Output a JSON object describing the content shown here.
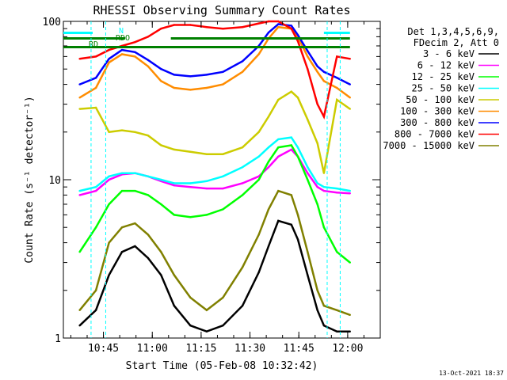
{
  "chart_data": {
    "type": "line",
    "title": "RHESSI Observing Summary Count Rates",
    "xlabel": "Start Time (05-Feb-08 10:32:42)",
    "ylabel": "Count Rate (s⁻¹ detector⁻¹)",
    "y_scale": "log",
    "ylim": [
      1,
      100
    ],
    "xlim": [
      "10:32:42",
      "12:10:00"
    ],
    "x_unit": "minutes after 10:32:42",
    "x_ticks": [
      "10:45",
      "11:00",
      "11:15",
      "11:30",
      "11:45",
      "12:00"
    ],
    "y_ticks": [
      "1",
      "10",
      "100"
    ],
    "legend_title": [
      "Det 1,3,4,5,6,9,",
      "FDecim 2, Att 0"
    ],
    "legend_position": "right",
    "footer_date": "13-Oct-2021 18:37",
    "flags": [
      {
        "label": "N",
        "color": "#00ffff"
      },
      {
        "label": "RDO",
        "color": "#008000"
      },
      {
        "label": "RD",
        "color": "#008000"
      }
    ],
    "series": [
      {
        "name": "3 - 6 keV",
        "color": "#000000",
        "x": [
          5,
          10,
          14,
          18,
          22,
          26,
          30,
          34,
          39,
          44,
          49,
          55,
          60,
          63,
          66,
          70,
          72,
          75,
          78,
          80,
          84,
          88
        ],
        "y": [
          1.2,
          1.5,
          2.5,
          3.5,
          3.8,
          3.2,
          2.5,
          1.6,
          1.2,
          1.1,
          1.2,
          1.6,
          2.6,
          3.8,
          5.5,
          5.2,
          4.2,
          2.5,
          1.5,
          1.2,
          1.1,
          1.1
        ]
      },
      {
        "name": "6 - 12 keV",
        "color": "#ff00ff",
        "x": [
          5,
          10,
          14,
          18,
          22,
          26,
          30,
          34,
          39,
          44,
          49,
          55,
          60,
          63,
          66,
          70,
          72,
          75,
          78,
          80,
          84,
          88
        ],
        "y": [
          8.0,
          8.5,
          10.0,
          10.8,
          11.0,
          10.5,
          9.8,
          9.2,
          9.0,
          8.8,
          8.8,
          9.5,
          10.5,
          12.0,
          14.0,
          15.5,
          14.0,
          11.0,
          9.0,
          8.5,
          8.3,
          8.2
        ]
      },
      {
        "name": "12 - 25 keV",
        "color": "#00ff00",
        "x": [
          5,
          10,
          14,
          18,
          22,
          26,
          30,
          34,
          39,
          44,
          49,
          55,
          60,
          63,
          66,
          70,
          72,
          75,
          78,
          80,
          84,
          88
        ],
        "y": [
          3.5,
          5.0,
          7.0,
          8.5,
          8.5,
          8.0,
          7.0,
          6.0,
          5.8,
          6.0,
          6.5,
          8.0,
          10.0,
          13.0,
          16.0,
          16.5,
          14.0,
          10.0,
          7.0,
          5.0,
          3.5,
          3.0
        ]
      },
      {
        "name": "25 - 50 keV",
        "color": "#00ffff",
        "x": [
          5,
          10,
          14,
          18,
          22,
          26,
          30,
          34,
          39,
          44,
          49,
          55,
          60,
          63,
          66,
          70,
          72,
          75,
          78,
          80,
          84,
          88
        ],
        "y": [
          8.5,
          9.0,
          10.5,
          11.0,
          11.0,
          10.5,
          10.0,
          9.5,
          9.5,
          9.8,
          10.5,
          12.0,
          14.0,
          16.0,
          18.0,
          18.5,
          16.0,
          12.0,
          9.5,
          9.0,
          8.8,
          8.5
        ]
      },
      {
        "name": "50 - 100 keV",
        "color": "#cccc00",
        "x": [
          5,
          10,
          14,
          18,
          22,
          26,
          30,
          34,
          39,
          44,
          49,
          55,
          60,
          63,
          66,
          70,
          72,
          75,
          78,
          80,
          84,
          88
        ],
        "y": [
          28.0,
          28.5,
          20.0,
          20.5,
          20.0,
          19.0,
          16.5,
          15.5,
          15.0,
          14.5,
          14.5,
          16.0,
          20.0,
          25.0,
          32.0,
          36.0,
          33.0,
          24.0,
          17.0,
          11.0,
          32.0,
          28.0
        ]
      },
      {
        "name": "100 - 300 keV",
        "color": "#ff8c00",
        "x": [
          5,
          10,
          14,
          18,
          22,
          26,
          30,
          34,
          39,
          44,
          49,
          55,
          60,
          63,
          66,
          70,
          72,
          75,
          78,
          80,
          84,
          88
        ],
        "y": [
          33.0,
          38.0,
          55.0,
          62.0,
          60.0,
          52.0,
          42.0,
          38.0,
          37.0,
          38.0,
          40.0,
          48.0,
          62.0,
          78.0,
          92.0,
          90.0,
          80.0,
          60.0,
          48.0,
          42.0,
          38.0,
          33.0
        ]
      },
      {
        "name": "300 - 800 keV",
        "color": "#0000ff",
        "x": [
          5,
          10,
          14,
          18,
          22,
          26,
          30,
          34,
          39,
          44,
          49,
          55,
          60,
          63,
          66,
          70,
          72,
          75,
          78,
          80,
          84,
          88
        ],
        "y": [
          40.0,
          44.0,
          58.0,
          66.0,
          64.0,
          57.0,
          50.0,
          46.0,
          45.0,
          46.0,
          48.0,
          56.0,
          70.0,
          85.0,
          96.0,
          94.0,
          82.0,
          65.0,
          52.0,
          48.0,
          44.0,
          40.0
        ]
      },
      {
        "name": "800 - 7000 keV",
        "color": "#ff0000",
        "x": [
          5,
          10,
          14,
          18,
          22,
          26,
          30,
          34,
          39,
          44,
          49,
          55,
          60,
          63,
          66,
          70,
          72,
          75,
          78,
          80,
          84,
          88
        ],
        "y": [
          58.0,
          60.0,
          66.0,
          70.0,
          74.0,
          80.0,
          90.0,
          95.0,
          95.0,
          92.0,
          90.0,
          92.0,
          97.0,
          100.0,
          100.0,
          90.0,
          75.0,
          50.0,
          30.0,
          25.0,
          60.0,
          58.0
        ]
      },
      {
        "name": "7000 - 15000 keV",
        "color": "#808000",
        "x": [
          5,
          10,
          14,
          18,
          22,
          26,
          30,
          34,
          39,
          44,
          49,
          55,
          60,
          63,
          66,
          70,
          72,
          75,
          78,
          80,
          84,
          88
        ],
        "y": [
          1.5,
          2.0,
          4.0,
          5.0,
          5.3,
          4.5,
          3.5,
          2.5,
          1.8,
          1.5,
          1.8,
          2.8,
          4.5,
          6.5,
          8.5,
          8.0,
          6.0,
          3.5,
          2.0,
          1.6,
          1.5,
          1.4
        ]
      }
    ]
  }
}
